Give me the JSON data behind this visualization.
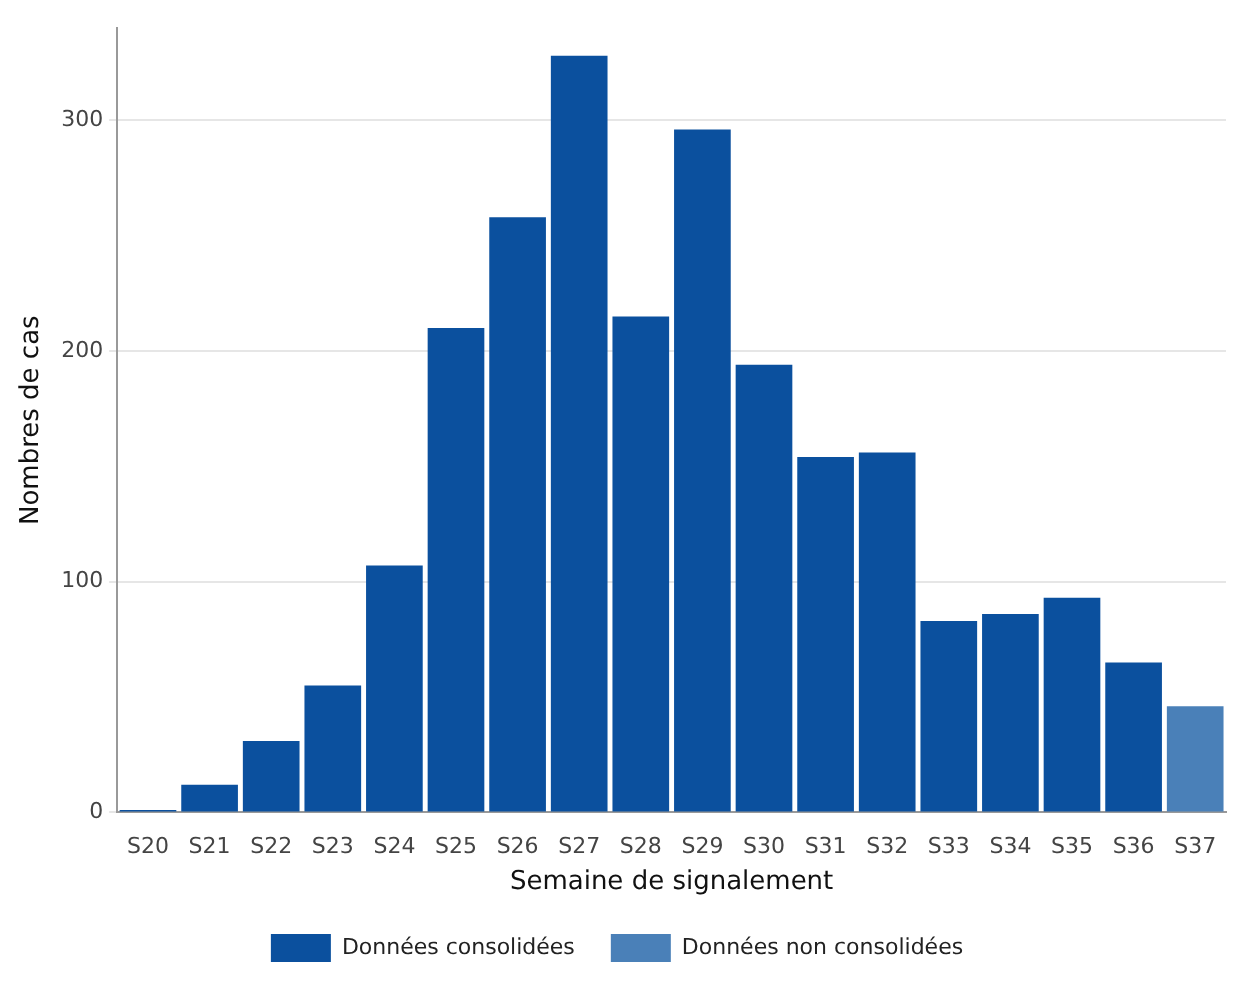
{
  "chart_data": {
    "type": "bar",
    "xlabel": "Semaine de signalement",
    "ylabel": "Nombres de cas",
    "categories": [
      "S20",
      "S21",
      "S22",
      "S23",
      "S24",
      "S25",
      "S26",
      "S27",
      "S28",
      "S29",
      "S30",
      "S31",
      "S32",
      "S33",
      "S34",
      "S35",
      "S36",
      "S37"
    ],
    "stacked": true,
    "series": [
      {
        "name": "Données consolidées",
        "color": "#0b509e",
        "values": [
          1,
          12,
          31,
          55,
          107,
          210,
          258,
          328,
          215,
          296,
          194,
          154,
          156,
          83,
          86,
          93,
          65,
          null
        ]
      },
      {
        "name": "Données non consolidées",
        "color": "#4a80b8",
        "values": [
          null,
          null,
          null,
          null,
          null,
          null,
          null,
          null,
          null,
          null,
          null,
          null,
          null,
          null,
          null,
          null,
          null,
          46
        ]
      }
    ],
    "ylim": [
      0,
      340
    ],
    "yticks": [
      0,
      100,
      200,
      300
    ],
    "grid": "y",
    "legend": "bottom"
  }
}
